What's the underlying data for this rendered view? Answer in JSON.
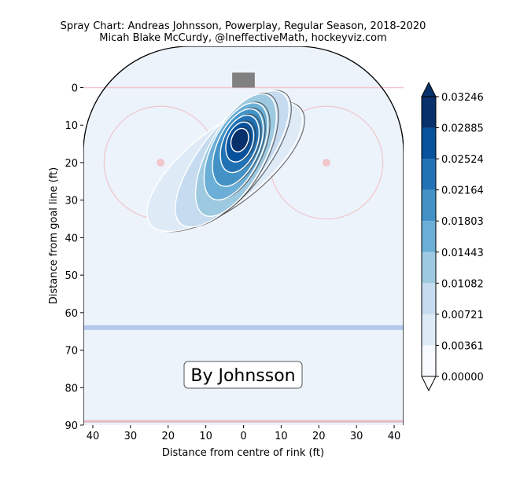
{
  "chart_data": {
    "type": "heatmap",
    "title": "Spray Chart: Andreas Johnsson, Powerplay, Regular Season, 2018-2020",
    "subtitle": "Micah Blake McCurdy, @IneffectiveMath, hockeyviz.com",
    "xlabel": "Distance from centre of rink (ft)",
    "ylabel": "Distance from goal line (ft)",
    "xlim": [
      -42.5,
      42.5
    ],
    "ylim": [
      -11,
      90
    ],
    "x_ticks": [
      -40,
      -30,
      -20,
      -10,
      0,
      10,
      20,
      30,
      40
    ],
    "x_tick_labels": [
      "40",
      "30",
      "20",
      "10",
      "0",
      "10",
      "20",
      "30",
      "40"
    ],
    "y_ticks": [
      0,
      10,
      20,
      30,
      40,
      50,
      60,
      70,
      80,
      90
    ],
    "y_tick_labels": [
      "0",
      "10",
      "20",
      "30",
      "40",
      "50",
      "60",
      "70",
      "80",
      "90"
    ],
    "grid": false,
    "annotation": "By Johnsson",
    "density_peak": {
      "x": -1,
      "y": 14,
      "value": 0.0325
    },
    "colorbar": {
      "levels": [
        0.0,
        0.00361,
        0.00721,
        0.01082,
        0.01443,
        0.01803,
        0.02164,
        0.02524,
        0.02885,
        0.03246
      ],
      "tick_labels": [
        "0.00000",
        "0.00361",
        "0.00721",
        "0.01082",
        "0.01443",
        "0.01803",
        "0.02164",
        "0.02524",
        "0.02885",
        "0.03246"
      ],
      "colors": [
        "#f7fbff",
        "#deebf7",
        "#c6dbef",
        "#9ecae1",
        "#6baed6",
        "#4292c6",
        "#2171b5",
        "#08519c",
        "#08306b"
      ]
    },
    "rink": {
      "goal_line_y": 0,
      "blue_line_y": 64,
      "center_line_y": 89,
      "faceoff_dots": [
        [
          -22,
          20
        ],
        [
          22,
          20
        ]
      ],
      "faceoff_radius": 15,
      "colors": {
        "ice": "#ecf3fb",
        "goal_line": "#f2c4cc",
        "blue_line": "#b4c8ec",
        "net": "#808080",
        "faceoff": "#f0c6cb"
      }
    }
  }
}
